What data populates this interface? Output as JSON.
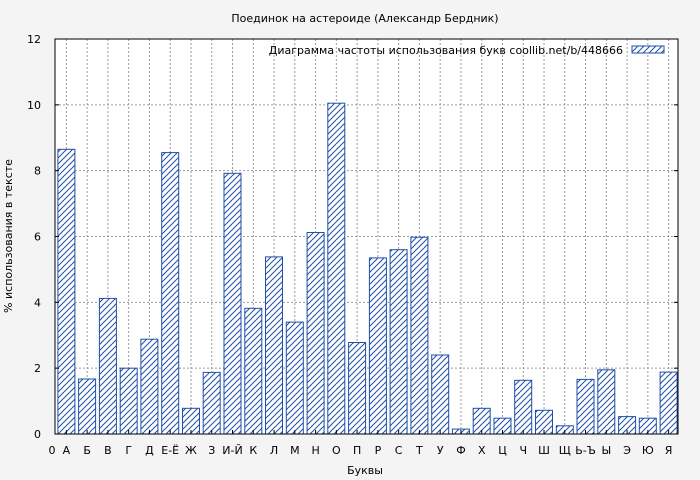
{
  "chart_data": {
    "type": "bar",
    "title": "Поединок на астероиде (Александр Бердник)",
    "xlabel": "Буквы",
    "ylabel": "% использования в тексте",
    "legend": "Диаграмма частоты использования букв  coollib.net/b/448666",
    "legend_position": "top-right",
    "grid": true,
    "ylim": [
      0,
      12
    ],
    "yticks": [
      "0",
      "2",
      "4",
      "6",
      "8",
      "10",
      "12"
    ],
    "x_start_label": "0",
    "categories": [
      "А",
      "Б",
      "В",
      "Г",
      "Д",
      "Е-Ё",
      "Ж",
      "З",
      "И-Й",
      "К",
      "Л",
      "М",
      "Н",
      "О",
      "П",
      "Р",
      "С",
      "Т",
      "У",
      "Ф",
      "Х",
      "Ц",
      "Ч",
      "Ш",
      "Щ",
      "Ь-Ъ",
      "Ы",
      "Э",
      "Ю",
      "Я"
    ],
    "values": [
      8.65,
      1.67,
      4.12,
      2.0,
      2.88,
      8.55,
      0.78,
      1.87,
      7.92,
      3.82,
      5.38,
      3.4,
      6.12,
      10.05,
      2.78,
      5.35,
      5.6,
      5.98,
      2.4,
      0.15,
      0.78,
      0.48,
      1.63,
      0.72,
      0.25,
      1.66,
      1.95,
      0.53,
      0.48,
      1.88
    ],
    "colors": {
      "bar_stroke": "#1f4fa8",
      "background": "#f4f4f4",
      "plot_background": "#ffffff"
    }
  }
}
